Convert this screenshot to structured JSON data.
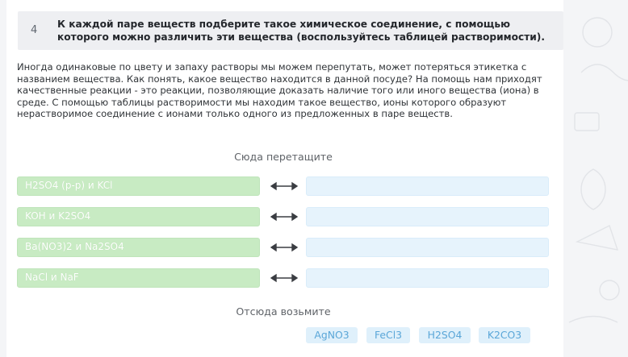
{
  "task": {
    "number": "4",
    "title": "К каждой паре веществ подберите такое химическое соединение, с помощью которого можно различить эти вещества (воспользуйтесь таблицей растворимости)."
  },
  "intro": "Иногда одинаковые по цвету и запаху растворы мы можем перепутать, может потеряться этикетка с названием вещества. Как понять, какое вещество находится в данной посуде? На помощь нам приходят качественные реакции - это реакции, позволяющие доказать наличие того или иного вещества (иона) в среде. С помощью таблицы растворимости мы находим такое вещество, ионы которого образуют нерастворимое соединение с ионами только одного из предложенных в паре веществ.",
  "drop_label": "Сюда перетащите",
  "source_label": "Отсюда возьмите",
  "pairs": [
    {
      "label": "H2SO4 (р-р) и KCl"
    },
    {
      "label": "KOH и K2SO4"
    },
    {
      "label": "Ba(NO3)2 и Na2SO4"
    },
    {
      "label": "NaCl и NaF"
    }
  ],
  "options": [
    "AgNO3",
    "FeCl3",
    "H2SO4",
    "K2CO3"
  ],
  "colors": {
    "pair_bg": "#c8ebc3",
    "dropzone_bg": "#e6f3fc",
    "chip_bg": "#dff0fb",
    "chip_text": "#5aa6d8",
    "header_bg": "#eeeff2"
  }
}
